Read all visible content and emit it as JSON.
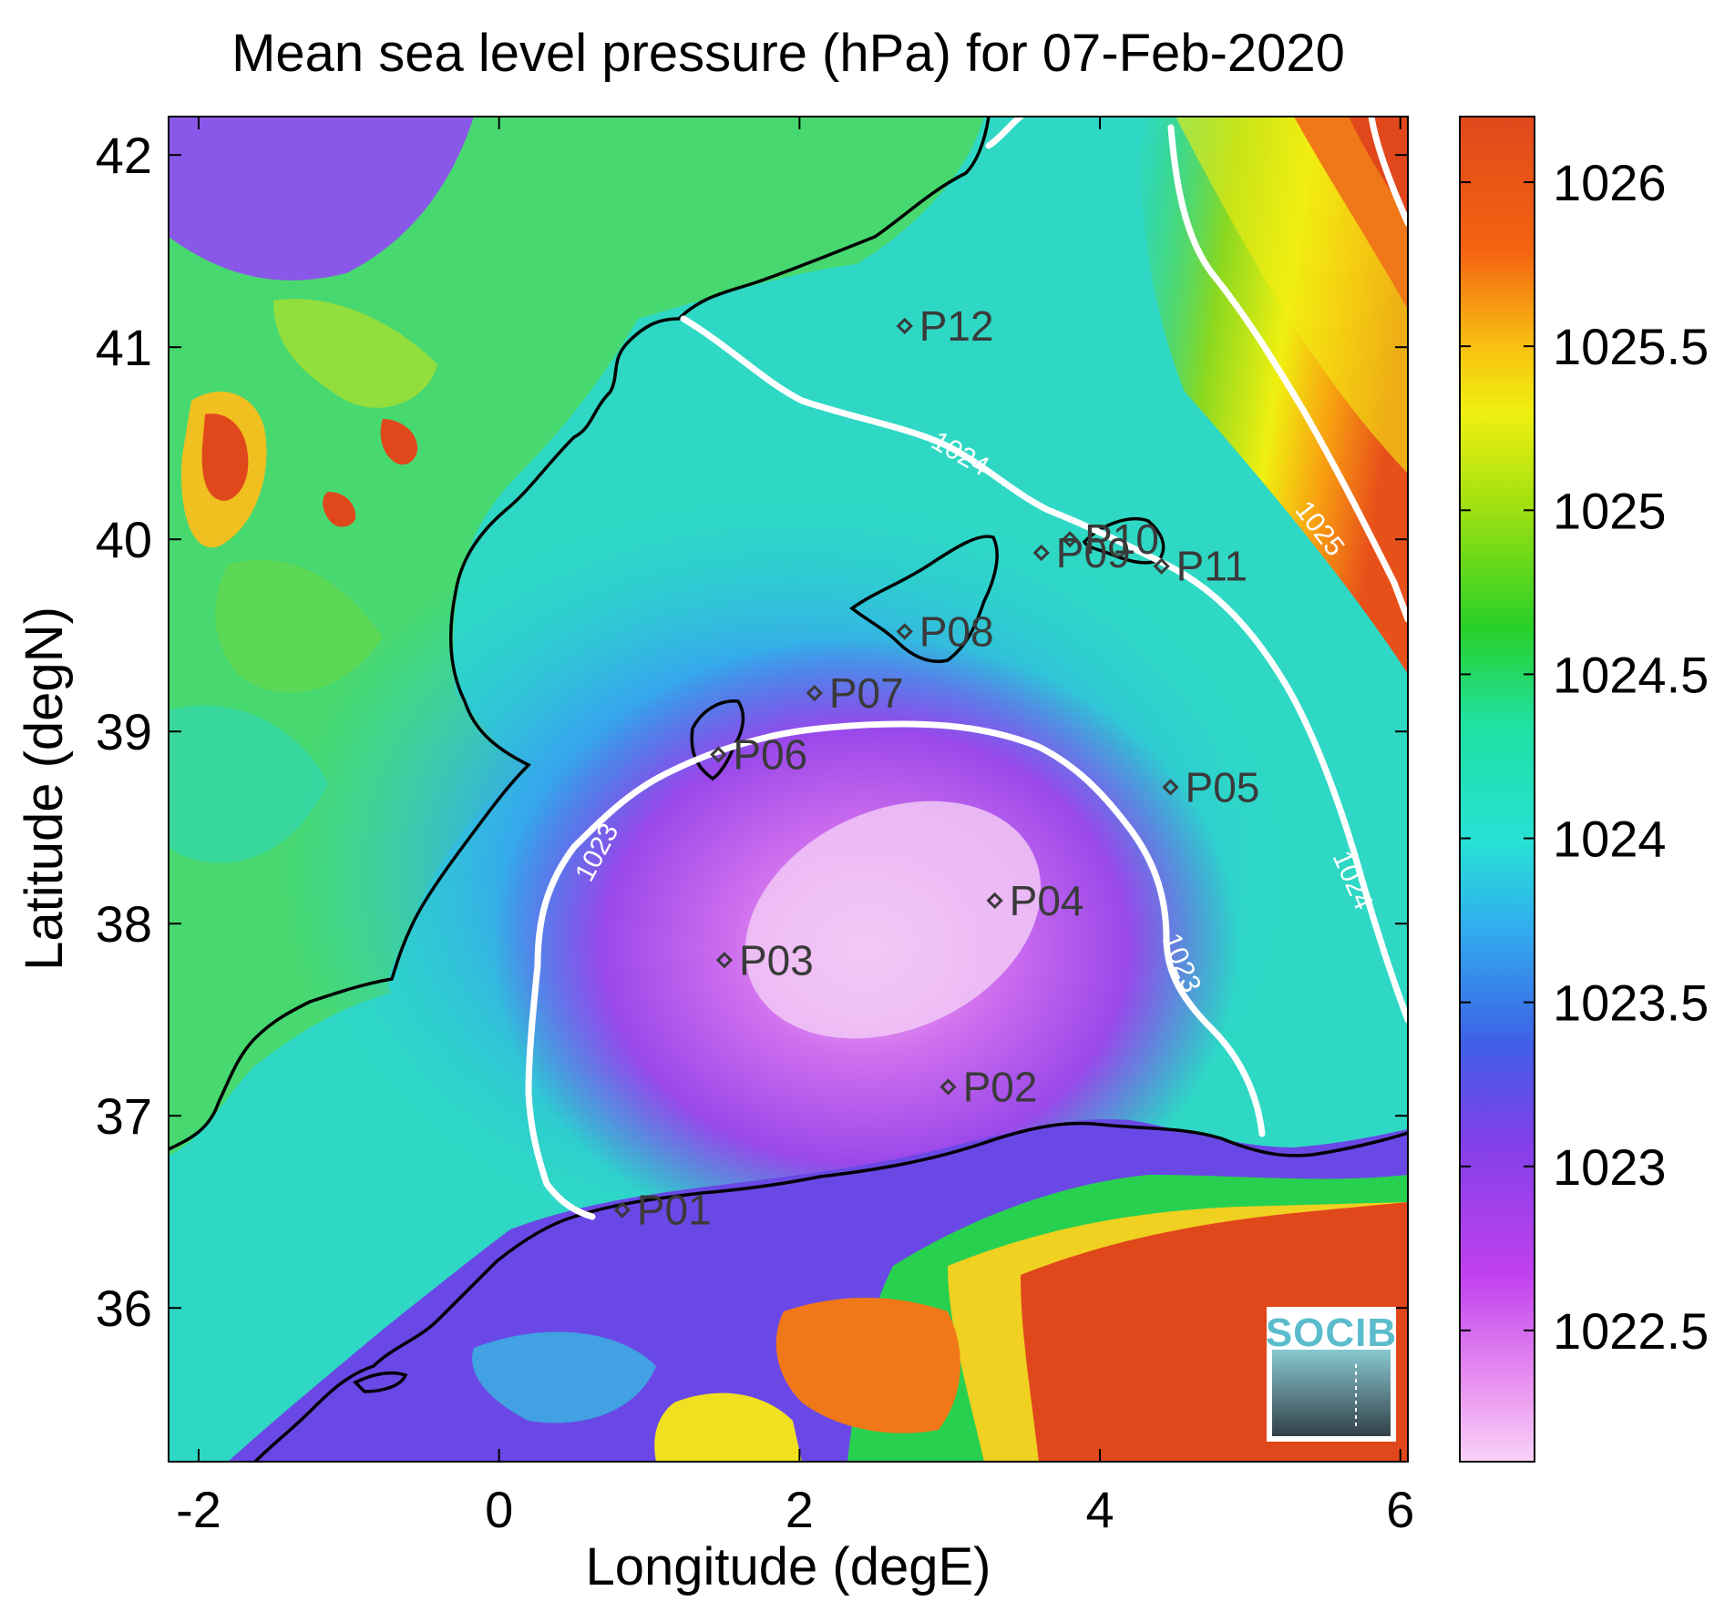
{
  "map": {
    "title": "Mean sea level pressure (hPa) for 07-Feb-2020",
    "xlabel": "Longitude (degE)",
    "ylabel": "Latitude (degN)",
    "xlim": [
      -2.2,
      6.05
    ],
    "ylim": [
      35.2,
      42.2
    ],
    "xticks": [
      -2,
      0,
      2,
      4,
      6
    ],
    "xtick_labels": [
      "-2",
      "0",
      "2",
      "4",
      "6"
    ],
    "yticks": [
      36,
      37,
      38,
      39,
      40,
      41,
      42
    ],
    "ytick_labels": [
      "36",
      "37",
      "38",
      "39",
      "40",
      "41",
      "42"
    ],
    "stations": [
      {
        "name": "P01",
        "lon": 0.82,
        "lat": 36.51
      },
      {
        "name": "P02",
        "lon": 2.99,
        "lat": 37.15
      },
      {
        "name": "P03",
        "lon": 1.5,
        "lat": 37.81
      },
      {
        "name": "P04",
        "lon": 3.3,
        "lat": 38.12
      },
      {
        "name": "P05",
        "lon": 4.47,
        "lat": 38.71
      },
      {
        "name": "P06",
        "lon": 1.46,
        "lat": 38.88
      },
      {
        "name": "P07",
        "lon": 2.1,
        "lat": 39.2
      },
      {
        "name": "P08",
        "lon": 2.7,
        "lat": 39.52
      },
      {
        "name": "P09",
        "lon": 3.61,
        "lat": 39.93
      },
      {
        "name": "P10",
        "lon": 3.8,
        "lat": 40.0
      },
      {
        "name": "P11",
        "lon": 4.41,
        "lat": 39.86
      },
      {
        "name": "P12",
        "lon": 2.7,
        "lat": 41.11
      }
    ],
    "contour_labels": [
      "1023",
      "1023",
      "1024",
      "1024",
      "1025"
    ],
    "colors": {
      "low": "#f4c2f6",
      "mid_low": "#8040e8",
      "mid": "#2ed8d0",
      "mid_high": "#34d034",
      "high": "#e8e810",
      "top": "#e04a1c",
      "contour": "#ffffff",
      "coast": "#000000"
    }
  },
  "colorbar": {
    "min": 1022.1,
    "max": 1026.2,
    "ticks": [
      1022.5,
      1023,
      1023.5,
      1024,
      1024.5,
      1025,
      1025.5,
      1026
    ],
    "tick_labels": [
      "1022.5",
      "1023",
      "1023.5",
      "1024",
      "1024.5",
      "1025",
      "1025.5",
      "1026"
    ]
  },
  "logo": {
    "text": "SOCIB",
    "icon": "socib-logo-icon"
  }
}
